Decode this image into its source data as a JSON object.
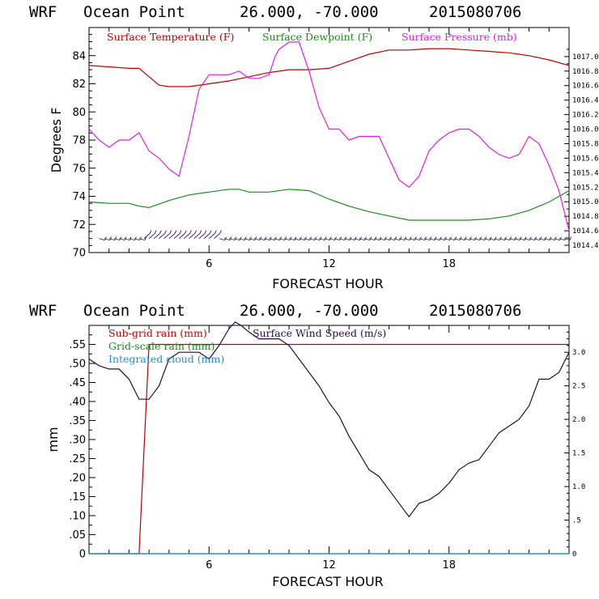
{
  "chart_data": [
    {
      "type": "line",
      "title_parts": [
        "WRF",
        "Ocean Point",
        "26.000, -70.000",
        "2015080706"
      ],
      "xlabel": "FORECAST HOUR",
      "ylabel": "Degrees F",
      "xlim": [
        0,
        24
      ],
      "ylim": [
        70,
        86
      ],
      "x_ticks": [
        6,
        12,
        18
      ],
      "y_ticks": [
        70,
        72,
        74,
        76,
        78,
        80,
        82,
        84
      ],
      "y2lim": [
        1014.3,
        1017.4
      ],
      "y2_ticks": [
        "1014.4",
        "1014.6",
        "1014.8",
        "1015.0",
        "1015.2",
        "1015.4",
        "1015.6",
        "1015.8",
        "1016.0",
        "1016.2",
        "1016.4",
        "1016.6",
        "1016.8",
        "1017.0"
      ],
      "legend": [
        "Surface Temperature (F)",
        "Surface Dewpoint (F)",
        "Surface Pressure (mb)"
      ],
      "colors": {
        "temperature": "#c00000",
        "dewpoint": "#1e8a1e",
        "pressure": "#e020e0"
      },
      "series": [
        {
          "name": "Surface Temperature (F)",
          "axis": "left",
          "x": [
            0,
            1,
            2,
            2.5,
            3,
            3.5,
            4,
            5,
            6,
            7,
            8,
            9,
            10,
            11,
            12,
            13,
            14,
            15,
            16,
            17,
            18,
            19,
            20,
            21,
            22,
            23,
            24
          ],
          "values": [
            83.3,
            83.2,
            83.1,
            83.1,
            82.5,
            81.9,
            81.8,
            81.8,
            82.0,
            82.2,
            82.5,
            82.8,
            83.0,
            83.0,
            83.1,
            83.6,
            84.1,
            84.4,
            84.4,
            84.5,
            84.5,
            84.4,
            84.3,
            84.2,
            84.0,
            83.7,
            83.3
          ]
        },
        {
          "name": "Surface Dewpoint (F)",
          "axis": "left",
          "x": [
            0,
            1,
            2,
            2.5,
            3,
            4,
            5,
            6,
            7,
            7.5,
            8,
            9,
            10,
            11,
            12,
            13,
            14,
            15,
            16,
            17,
            18,
            19,
            20,
            21,
            22,
            23,
            24
          ],
          "values": [
            73.6,
            73.5,
            73.5,
            73.3,
            73.2,
            73.7,
            74.1,
            74.3,
            74.5,
            74.5,
            74.3,
            74.3,
            74.5,
            74.4,
            73.8,
            73.3,
            72.9,
            72.6,
            72.3,
            72.3,
            72.3,
            72.3,
            72.4,
            72.6,
            73.0,
            73.6,
            74.4
          ]
        },
        {
          "name": "Surface Pressure (mb)",
          "axis": "right",
          "x": [
            0,
            0.5,
            1,
            1.5,
            2,
            2.5,
            3,
            3.5,
            4,
            4.5,
            5,
            5.5,
            6,
            6.5,
            7,
            7.5,
            8,
            8.5,
            9,
            9.3,
            9.5,
            10,
            10.5,
            11,
            11.5,
            12,
            12.5,
            13,
            13.5,
            14,
            14.5,
            15,
            15.5,
            16,
            16.5,
            17,
            17.5,
            18,
            18.5,
            19,
            19.5,
            20,
            20.5,
            21,
            21.5,
            22,
            22.5,
            23,
            23.5,
            24
          ],
          "values": [
            1016.0,
            1015.85,
            1015.75,
            1015.85,
            1015.85,
            1015.95,
            1015.7,
            1015.6,
            1015.45,
            1015.35,
            1015.9,
            1016.55,
            1016.75,
            1016.75,
            1016.75,
            1016.8,
            1016.7,
            1016.7,
            1016.75,
            1017.0,
            1017.1,
            1017.2,
            1017.2,
            1016.8,
            1016.3,
            1016.0,
            1016.0,
            1015.85,
            1015.9,
            1015.9,
            1015.9,
            1015.6,
            1015.3,
            1015.2,
            1015.35,
            1015.7,
            1015.85,
            1015.95,
            1016.0,
            1016.0,
            1015.9,
            1015.75,
            1015.65,
            1015.6,
            1015.65,
            1015.9,
            1015.8,
            1015.5,
            1015.15,
            1014.6
          ]
        }
      ],
      "wind_barbs_label": "wind barbs at 71 F baseline"
    },
    {
      "type": "line",
      "title_parts": [
        "WRF",
        "Ocean Point",
        "26.000, -70.000",
        "2015080706"
      ],
      "xlabel": "FORECAST HOUR",
      "ylabel": "mm",
      "xlim": [
        0,
        24
      ],
      "ylim": [
        0,
        0.6
      ],
      "x_ticks": [
        6,
        12,
        18
      ],
      "y_ticks": [
        ".55",
        ".50",
        ".45",
        ".40",
        ".35",
        ".30",
        ".25",
        ".20",
        ".15",
        ".10",
        ".05",
        "0"
      ],
      "y2lim": [
        0,
        3.4
      ],
      "y2_ticks": [
        "3.0",
        "2.5",
        "2.0",
        "1.5",
        "1.0",
        ".5",
        "0"
      ],
      "legend": [
        "Sub-grid rain (mm)",
        "Grid-scale rain (mm)",
        "Integrated cloud (mm)",
        "Surface Wind Speed (m/s)"
      ],
      "colors": {
        "subgrid": "#c00000",
        "gridscale": "#1e8a1e",
        "cloud": "#1e90e0",
        "wind": "#2a0a4a"
      },
      "series": [
        {
          "name": "Sub-grid rain (mm)",
          "axis": "left",
          "x": [
            0,
            2,
            2.5,
            3,
            3.1,
            24
          ],
          "values": [
            0,
            0,
            0,
            0.55,
            0.55,
            0.55
          ]
        },
        {
          "name": "Grid-scale rain (mm)",
          "axis": "left",
          "x": [
            0,
            24
          ],
          "values": [
            0,
            0
          ]
        },
        {
          "name": "Integrated cloud (mm)",
          "axis": "left",
          "x": [
            0,
            24
          ],
          "values": [
            0,
            0
          ]
        },
        {
          "name": "Surface Wind Speed (m/s)",
          "axis": "right",
          "x": [
            0,
            0.5,
            1,
            1.5,
            2,
            2.5,
            3,
            3.5,
            4,
            4.5,
            5,
            5.5,
            6,
            6.5,
            7,
            7.3,
            7.6,
            8,
            8.5,
            9,
            9.5,
            10,
            10.5,
            11,
            11.5,
            12,
            12.5,
            13,
            13.5,
            14,
            14.5,
            15,
            15.5,
            16,
            16.5,
            17,
            17.5,
            18,
            18.5,
            19,
            19.5,
            20,
            20.5,
            21,
            21.5,
            22,
            22.5,
            23,
            23.5,
            24
          ],
          "values": [
            2.9,
            2.8,
            2.75,
            2.75,
            2.6,
            2.3,
            2.3,
            2.5,
            2.9,
            3.0,
            3.0,
            3.0,
            2.9,
            3.1,
            3.35,
            3.45,
            3.4,
            3.3,
            3.2,
            3.2,
            3.2,
            3.1,
            2.9,
            2.7,
            2.5,
            2.25,
            2.05,
            1.75,
            1.5,
            1.25,
            1.15,
            0.95,
            0.75,
            0.55,
            0.75,
            0.8,
            0.9,
            1.05,
            1.25,
            1.35,
            1.4,
            1.6,
            1.8,
            1.9,
            2.0,
            2.2,
            2.6,
            2.6,
            2.7,
            3.0
          ]
        }
      ]
    }
  ]
}
